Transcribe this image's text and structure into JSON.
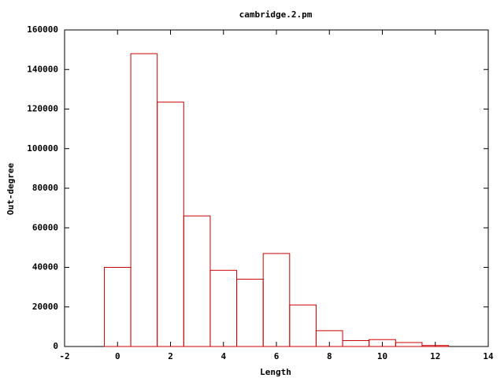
{
  "chart_data": {
    "type": "histogram",
    "title": "cambridge.2.pm",
    "x_label": "Length",
    "y_label": "Out-degree",
    "bins": [
      -0.5,
      0.5,
      1.5,
      2.5,
      3.5,
      4.5,
      5.5,
      6.5,
      7.5,
      8.5,
      9.5,
      10.5,
      11.5,
      12.5
    ],
    "values": [
      40000,
      148000,
      123500,
      66000,
      38500,
      34000,
      47000,
      21000,
      8000,
      3000,
      3500,
      2000,
      500
    ],
    "color": "#cc0000",
    "xlim": [
      -2,
      14
    ],
    "xticks": [
      -2,
      0,
      2,
      4,
      6,
      8,
      10,
      12,
      14
    ],
    "ylim": [
      0,
      160000
    ],
    "yticks": [
      0,
      20000,
      40000,
      60000,
      80000,
      100000,
      120000,
      140000,
      160000
    ]
  }
}
